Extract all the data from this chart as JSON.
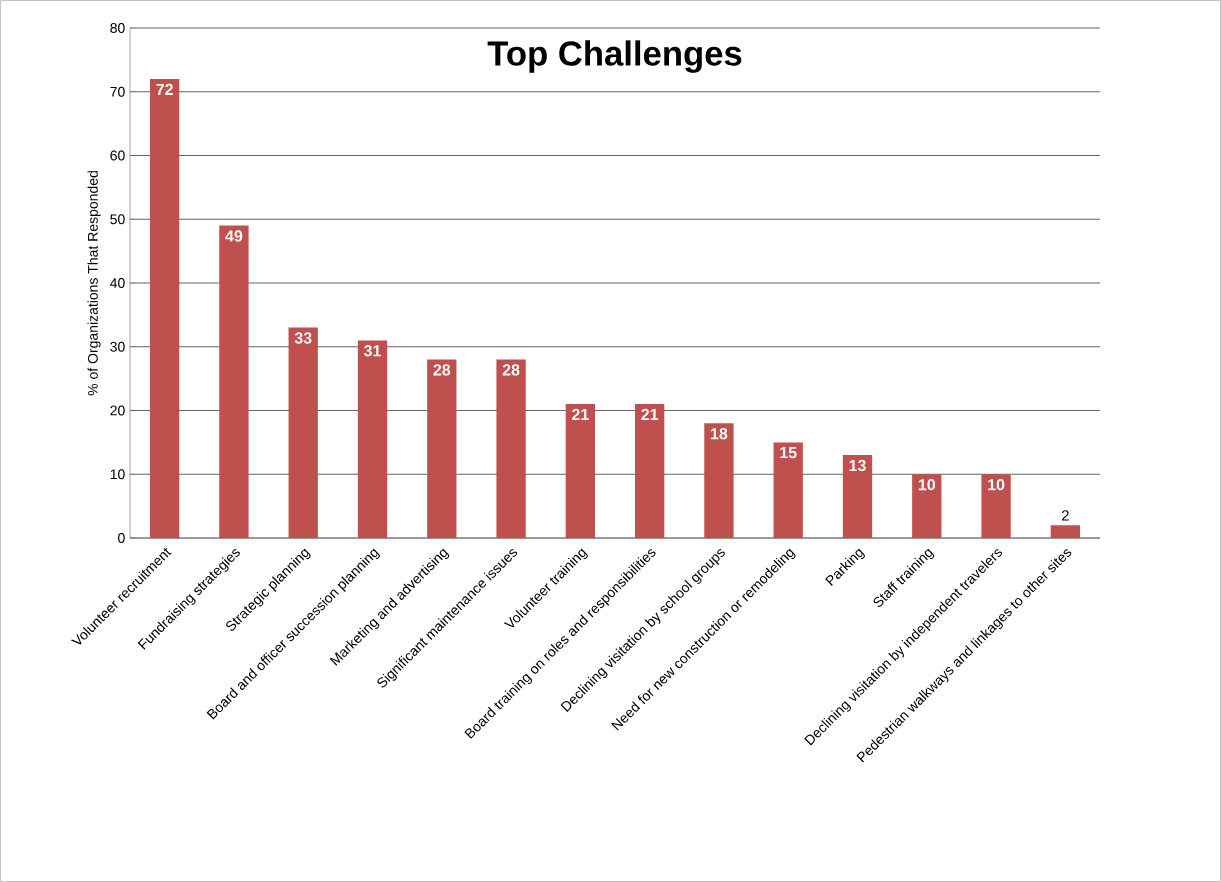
{
  "chart_data": {
    "type": "bar",
    "title": "Top Challenges",
    "ylabel": "% of Organizations  That Responded",
    "categories": [
      "Volunteer recruitment",
      "Fundraising strategies",
      "Strategic planning",
      "Board and officer succession planning",
      "Marketing and advertising",
      "Significant maintenance issues",
      "Volunteer training",
      "Board training on roles and responsibilities",
      "Declining visitation  by school groups",
      "Need for new construction or remodeling",
      "Parking",
      "Staff training",
      "Declining visitation  by independent travelers",
      "Pedestrian walkways and linkages to other sites"
    ],
    "values": [
      72,
      49,
      33,
      31,
      28,
      28,
      21,
      21,
      18,
      15,
      13,
      10,
      10,
      2
    ],
    "color": "#c0504d",
    "ylim": [
      0,
      80
    ],
    "yticks": [
      0,
      10,
      20,
      30,
      40,
      50,
      60,
      70,
      80
    ],
    "grid": "y",
    "data_labels": true
  }
}
